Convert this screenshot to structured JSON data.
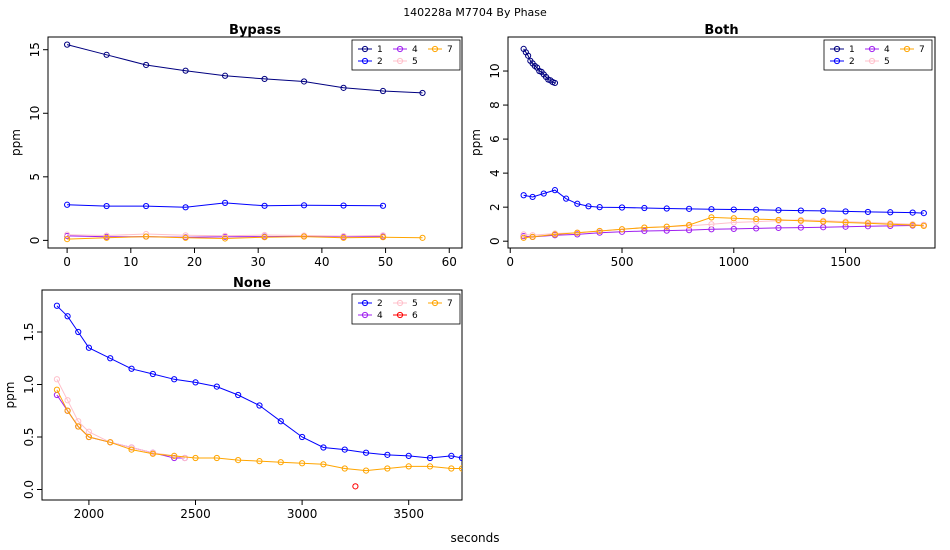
{
  "figure": {
    "title": "140228a    M7704   By Phase",
    "xlabel": "seconds"
  },
  "chart_data": [
    {
      "type": "line",
      "title": "Bypass",
      "xlabel": "",
      "ylabel": "ppm",
      "xlim": [
        -3,
        62
      ],
      "ylim": [
        -0.6,
        16.0
      ],
      "xticks": [
        0,
        10,
        20,
        30,
        40,
        50,
        60
      ],
      "yticks": [
        0,
        5,
        10,
        15
      ],
      "legend": [
        "1",
        "2",
        "4",
        "5",
        "7"
      ],
      "series": [
        {
          "name": "1",
          "color": "#000080",
          "x": [
            0,
            6.2,
            12.4,
            18.6,
            24.8,
            31,
            37.2,
            43.4,
            49.6,
            55.8
          ],
          "y": [
            15.4,
            14.6,
            13.8,
            13.35,
            12.95,
            12.7,
            12.5,
            12.0,
            11.75,
            11.6
          ]
        },
        {
          "name": "2",
          "color": "#0000ff",
          "x": [
            0,
            6.2,
            12.4,
            18.6,
            24.8,
            31,
            37.2,
            43.4,
            49.6
          ],
          "y": [
            2.8,
            2.7,
            2.7,
            2.6,
            2.95,
            2.72,
            2.76,
            2.74,
            2.72
          ]
        },
        {
          "name": "4",
          "color": "#a020f0",
          "x": [
            0,
            6.2,
            12.4,
            18.6,
            24.8,
            31,
            37.2,
            43.4,
            49.6
          ],
          "y": [
            0.35,
            0.28,
            0.3,
            0.25,
            0.28,
            0.3,
            0.32,
            0.28,
            0.3
          ]
        },
        {
          "name": "5",
          "color": "#ffc0cb",
          "x": [
            0,
            6.2,
            12.4,
            18.6,
            24.8,
            31,
            37.2,
            43.4,
            49.6
          ],
          "y": [
            0.45,
            0.38,
            0.5,
            0.4,
            0.36,
            0.42,
            0.38,
            0.34,
            0.4
          ]
        },
        {
          "name": "7",
          "color": "#ffa500",
          "x": [
            0,
            6.2,
            12.4,
            18.6,
            24.8,
            31,
            37.2,
            43.4,
            49.6,
            55.8
          ],
          "y": [
            0.1,
            0.2,
            0.3,
            0.2,
            0.15,
            0.25,
            0.3,
            0.2,
            0.25,
            0.2
          ]
        }
      ]
    },
    {
      "type": "line",
      "title": "Both",
      "xlabel": "",
      "ylabel": "ppm",
      "xlim": [
        -10,
        1900
      ],
      "ylim": [
        -0.4,
        12.0
      ],
      "xticks": [
        0,
        500,
        1000,
        1500
      ],
      "yticks": [
        0,
        2,
        4,
        6,
        8,
        10
      ],
      "legend": [
        "1",
        "2",
        "4",
        "5",
        "7"
      ],
      "series": [
        {
          "name": "1",
          "color": "#000080",
          "x": [
            60,
            70,
            80,
            90,
            100,
            110,
            120,
            130,
            140,
            150,
            160,
            170,
            180,
            190,
            200
          ],
          "y": [
            11.3,
            11.1,
            10.9,
            10.6,
            10.45,
            10.3,
            10.2,
            10.0,
            9.95,
            9.8,
            9.65,
            9.5,
            9.45,
            9.35,
            9.3
          ]
        },
        {
          "name": "2",
          "color": "#0000ff",
          "x": [
            60,
            100,
            150,
            200,
            250,
            300,
            350,
            400,
            500,
            600,
            700,
            800,
            900,
            1000,
            1100,
            1200,
            1300,
            1400,
            1500,
            1600,
            1700,
            1800,
            1850
          ],
          "y": [
            2.7,
            2.6,
            2.8,
            3.0,
            2.5,
            2.2,
            2.05,
            2.0,
            1.98,
            1.95,
            1.92,
            1.9,
            1.88,
            1.86,
            1.85,
            1.82,
            1.8,
            1.78,
            1.75,
            1.72,
            1.7,
            1.68,
            1.65
          ]
        },
        {
          "name": "4",
          "color": "#a020f0",
          "x": [
            60,
            100,
            200,
            300,
            400,
            500,
            600,
            700,
            800,
            900,
            1000,
            1100,
            1200,
            1300,
            1400,
            1500,
            1600,
            1700,
            1800,
            1850
          ],
          "y": [
            0.3,
            0.25,
            0.35,
            0.4,
            0.5,
            0.55,
            0.6,
            0.62,
            0.65,
            0.7,
            0.72,
            0.75,
            0.78,
            0.8,
            0.82,
            0.85,
            0.88,
            0.9,
            0.92,
            0.95
          ]
        },
        {
          "name": "5",
          "color": "#ffc0cb",
          "x": [
            60,
            100,
            200,
            300,
            400,
            500,
            600,
            700,
            800,
            900,
            1000,
            1100,
            1200,
            1300,
            1400,
            1500,
            1600,
            1700,
            1800,
            1850
          ],
          "y": [
            0.4,
            0.35,
            0.45,
            0.5,
            0.6,
            0.7,
            0.8,
            0.85,
            0.9,
            1.0,
            1.1,
            1.15,
            1.2,
            1.25,
            1.2,
            1.15,
            1.1,
            1.05,
            1.0,
            0.95
          ]
        },
        {
          "name": "7",
          "color": "#ffa500",
          "x": [
            60,
            100,
            200,
            300,
            400,
            500,
            600,
            700,
            800,
            900,
            1000,
            1100,
            1200,
            1300,
            1400,
            1500,
            1600,
            1700,
            1800,
            1850
          ],
          "y": [
            0.2,
            0.25,
            0.4,
            0.5,
            0.6,
            0.7,
            0.8,
            0.85,
            0.95,
            1.4,
            1.35,
            1.3,
            1.25,
            1.2,
            1.15,
            1.1,
            1.05,
            1.0,
            0.95,
            0.9
          ]
        }
      ]
    },
    {
      "type": "line",
      "title": "None",
      "xlabel": "",
      "ylabel": "ppm",
      "xlim": [
        1780,
        3750
      ],
      "ylim": [
        -0.1,
        1.9
      ],
      "xticks": [
        2000,
        2500,
        3000,
        3500
      ],
      "yticks": [
        0.0,
        0.5,
        1.0,
        1.5
      ],
      "legend": [
        "2",
        "4",
        "5",
        "6",
        "7"
      ],
      "series": [
        {
          "name": "2",
          "color": "#0000ff",
          "x": [
            1850,
            1900,
            1950,
            2000,
            2100,
            2200,
            2300,
            2400,
            2500,
            2600,
            2700,
            2800,
            2900,
            3000,
            3100,
            3200,
            3300,
            3400,
            3500,
            3600,
            3700,
            3750
          ],
          "y": [
            1.75,
            1.65,
            1.5,
            1.35,
            1.25,
            1.15,
            1.1,
            1.05,
            1.02,
            0.98,
            0.9,
            0.8,
            0.65,
            0.5,
            0.4,
            0.38,
            0.35,
            0.33,
            0.32,
            0.3,
            0.32,
            0.3
          ]
        },
        {
          "name": "4",
          "color": "#a020f0",
          "x": [
            1850,
            1900,
            1950,
            2000,
            2100,
            2200,
            2300,
            2400,
            2450
          ],
          "y": [
            0.9,
            0.75,
            0.6,
            0.5,
            0.45,
            0.4,
            0.35,
            0.3,
            0.3
          ]
        },
        {
          "name": "5",
          "color": "#ffc0cb",
          "x": [
            1850,
            1900,
            1950,
            2000,
            2100,
            2200,
            2300,
            2400,
            2450
          ],
          "y": [
            1.05,
            0.85,
            0.65,
            0.55,
            0.45,
            0.4,
            0.35,
            0.32,
            0.3
          ]
        },
        {
          "name": "6",
          "color": "#ff0000",
          "x": [
            3250
          ],
          "y": [
            0.03
          ]
        },
        {
          "name": "7",
          "color": "#ffa500",
          "x": [
            1850,
            1900,
            1950,
            2000,
            2100,
            2200,
            2300,
            2400,
            2500,
            2600,
            2700,
            2800,
            2900,
            3000,
            3100,
            3200,
            3300,
            3400,
            3500,
            3600,
            3700,
            3750
          ],
          "y": [
            0.95,
            0.75,
            0.6,
            0.5,
            0.45,
            0.38,
            0.34,
            0.32,
            0.3,
            0.3,
            0.28,
            0.27,
            0.26,
            0.25,
            0.24,
            0.2,
            0.18,
            0.2,
            0.22,
            0.22,
            0.2,
            0.2
          ]
        }
      ]
    }
  ]
}
